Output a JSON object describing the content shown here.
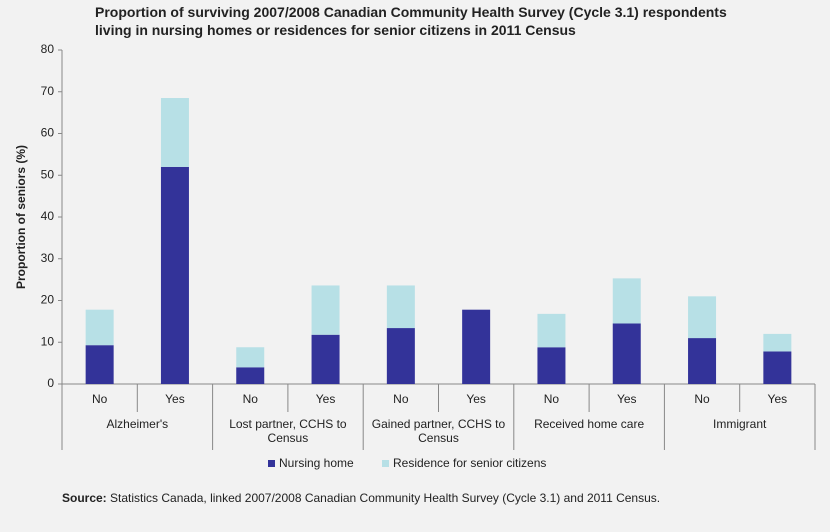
{
  "chart_data": {
    "type": "stacked_bar",
    "title": "Proportion of surviving 2007/2008 Canadian Community Health Survey (Cycle 3.1) respondents living in nursing homes or residences for senior citizens in 2011 Census",
    "y_label": "Proportion of seniors (%)",
    "groups": [
      {
        "label": "Alzheimer's",
        "categories": [
          "No",
          "Yes"
        ]
      },
      {
        "label": "Lost partner, CCHS to Census",
        "categories": [
          "No",
          "Yes"
        ]
      },
      {
        "label": "Gained partner, CCHS to Census",
        "categories": [
          "No",
          "Yes"
        ]
      },
      {
        "label": "Received home care",
        "categories": [
          "No",
          "Yes"
        ]
      },
      {
        "label": "Immigrant",
        "categories": [
          "No",
          "Yes"
        ]
      }
    ],
    "series": [
      {
        "name": "Nursing home",
        "color": "#333399",
        "values": [
          9.3,
          52,
          4,
          11.8,
          13.4,
          17.8,
          8.8,
          14.5,
          11,
          7.8
        ]
      },
      {
        "name": "Residence for senior citizens",
        "color": "#b7e0e6",
        "values": [
          8.5,
          16.5,
          4.8,
          11.8,
          10.2,
          0,
          8,
          10.8,
          10,
          4.2
        ]
      }
    ],
    "ylim": [
      0,
      80
    ],
    "yticks": [
      0,
      10,
      20,
      30,
      40,
      50,
      60,
      70,
      80
    ],
    "source_label": "Source:",
    "source": "Statistics Canada, linked 2007/2008 Canadian Community Health Survey (Cycle 3.1) and 2011 Census."
  }
}
